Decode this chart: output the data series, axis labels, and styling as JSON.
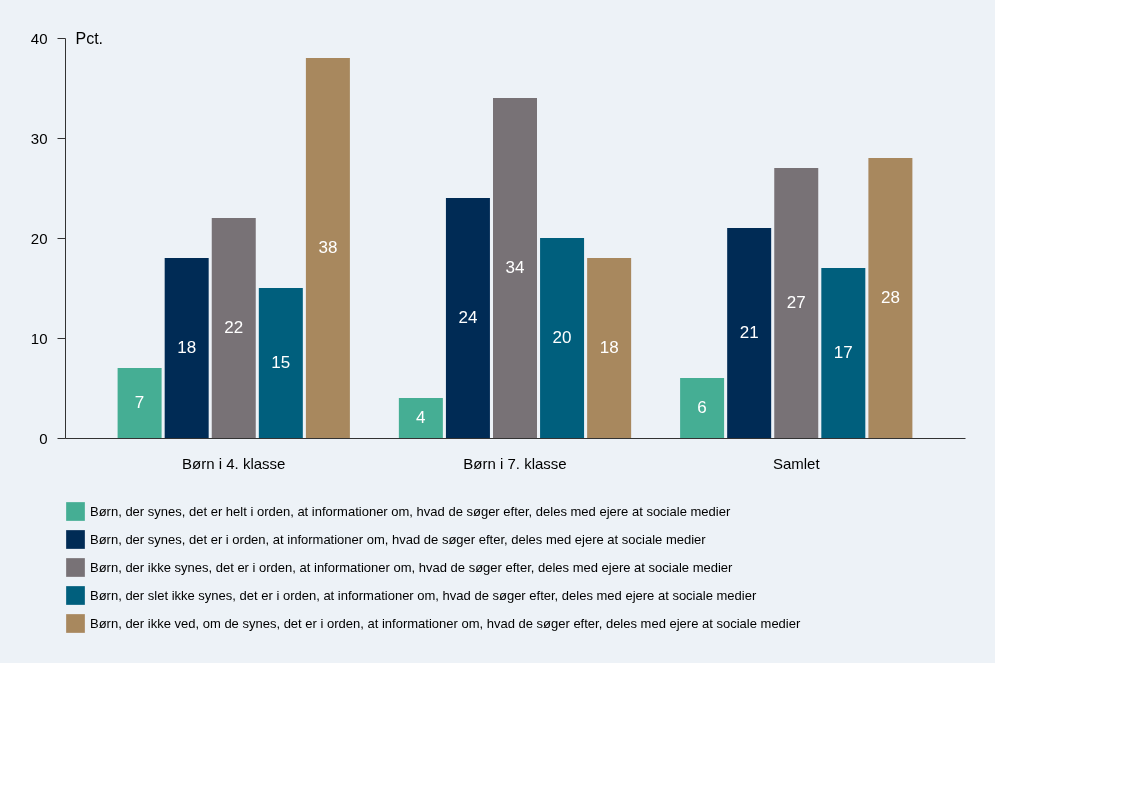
{
  "chart_data": {
    "type": "bar",
    "ylabel": "Pct.",
    "categories": [
      "Børn i 4. klasse",
      "Børn i 7. klasse",
      "Samlet"
    ],
    "series": [
      {
        "name": "Børn, der synes, det er helt i orden, at informationer om, hvad de søger efter, deles med ejere at sociale medier",
        "color": "#45ae94",
        "values": [
          7,
          4,
          6
        ]
      },
      {
        "name": "Børn, der synes, det er i orden, at informationer om, hvad de søger efter, deles med ejere at sociale medier",
        "color": "#002b55",
        "values": [
          18,
          24,
          21
        ]
      },
      {
        "name": "Børn, der ikke synes, det er i orden, at informationer om, hvad de søger efter, deles med ejere at sociale medier",
        "color": "#787276",
        "values": [
          22,
          34,
          27
        ]
      },
      {
        "name": "Børn, der slet ikke synes, det er i orden, at informationer om, hvad de søger efter, deles med ejere at sociale medier",
        "color": "#005f7d",
        "values": [
          15,
          20,
          17
        ]
      },
      {
        "name": "Børn, der ikke ved, om de synes, det er i orden, at informationer om, hvad de søger efter, deles med ejere at sociale medier",
        "color": "#a8885e",
        "values": [
          38,
          18,
          28
        ]
      }
    ],
    "ylim": [
      0,
      40
    ],
    "yticks": [
      0,
      10,
      20,
      30,
      40
    ],
    "grid": false,
    "legend": "bottom",
    "data_labels": true
  }
}
